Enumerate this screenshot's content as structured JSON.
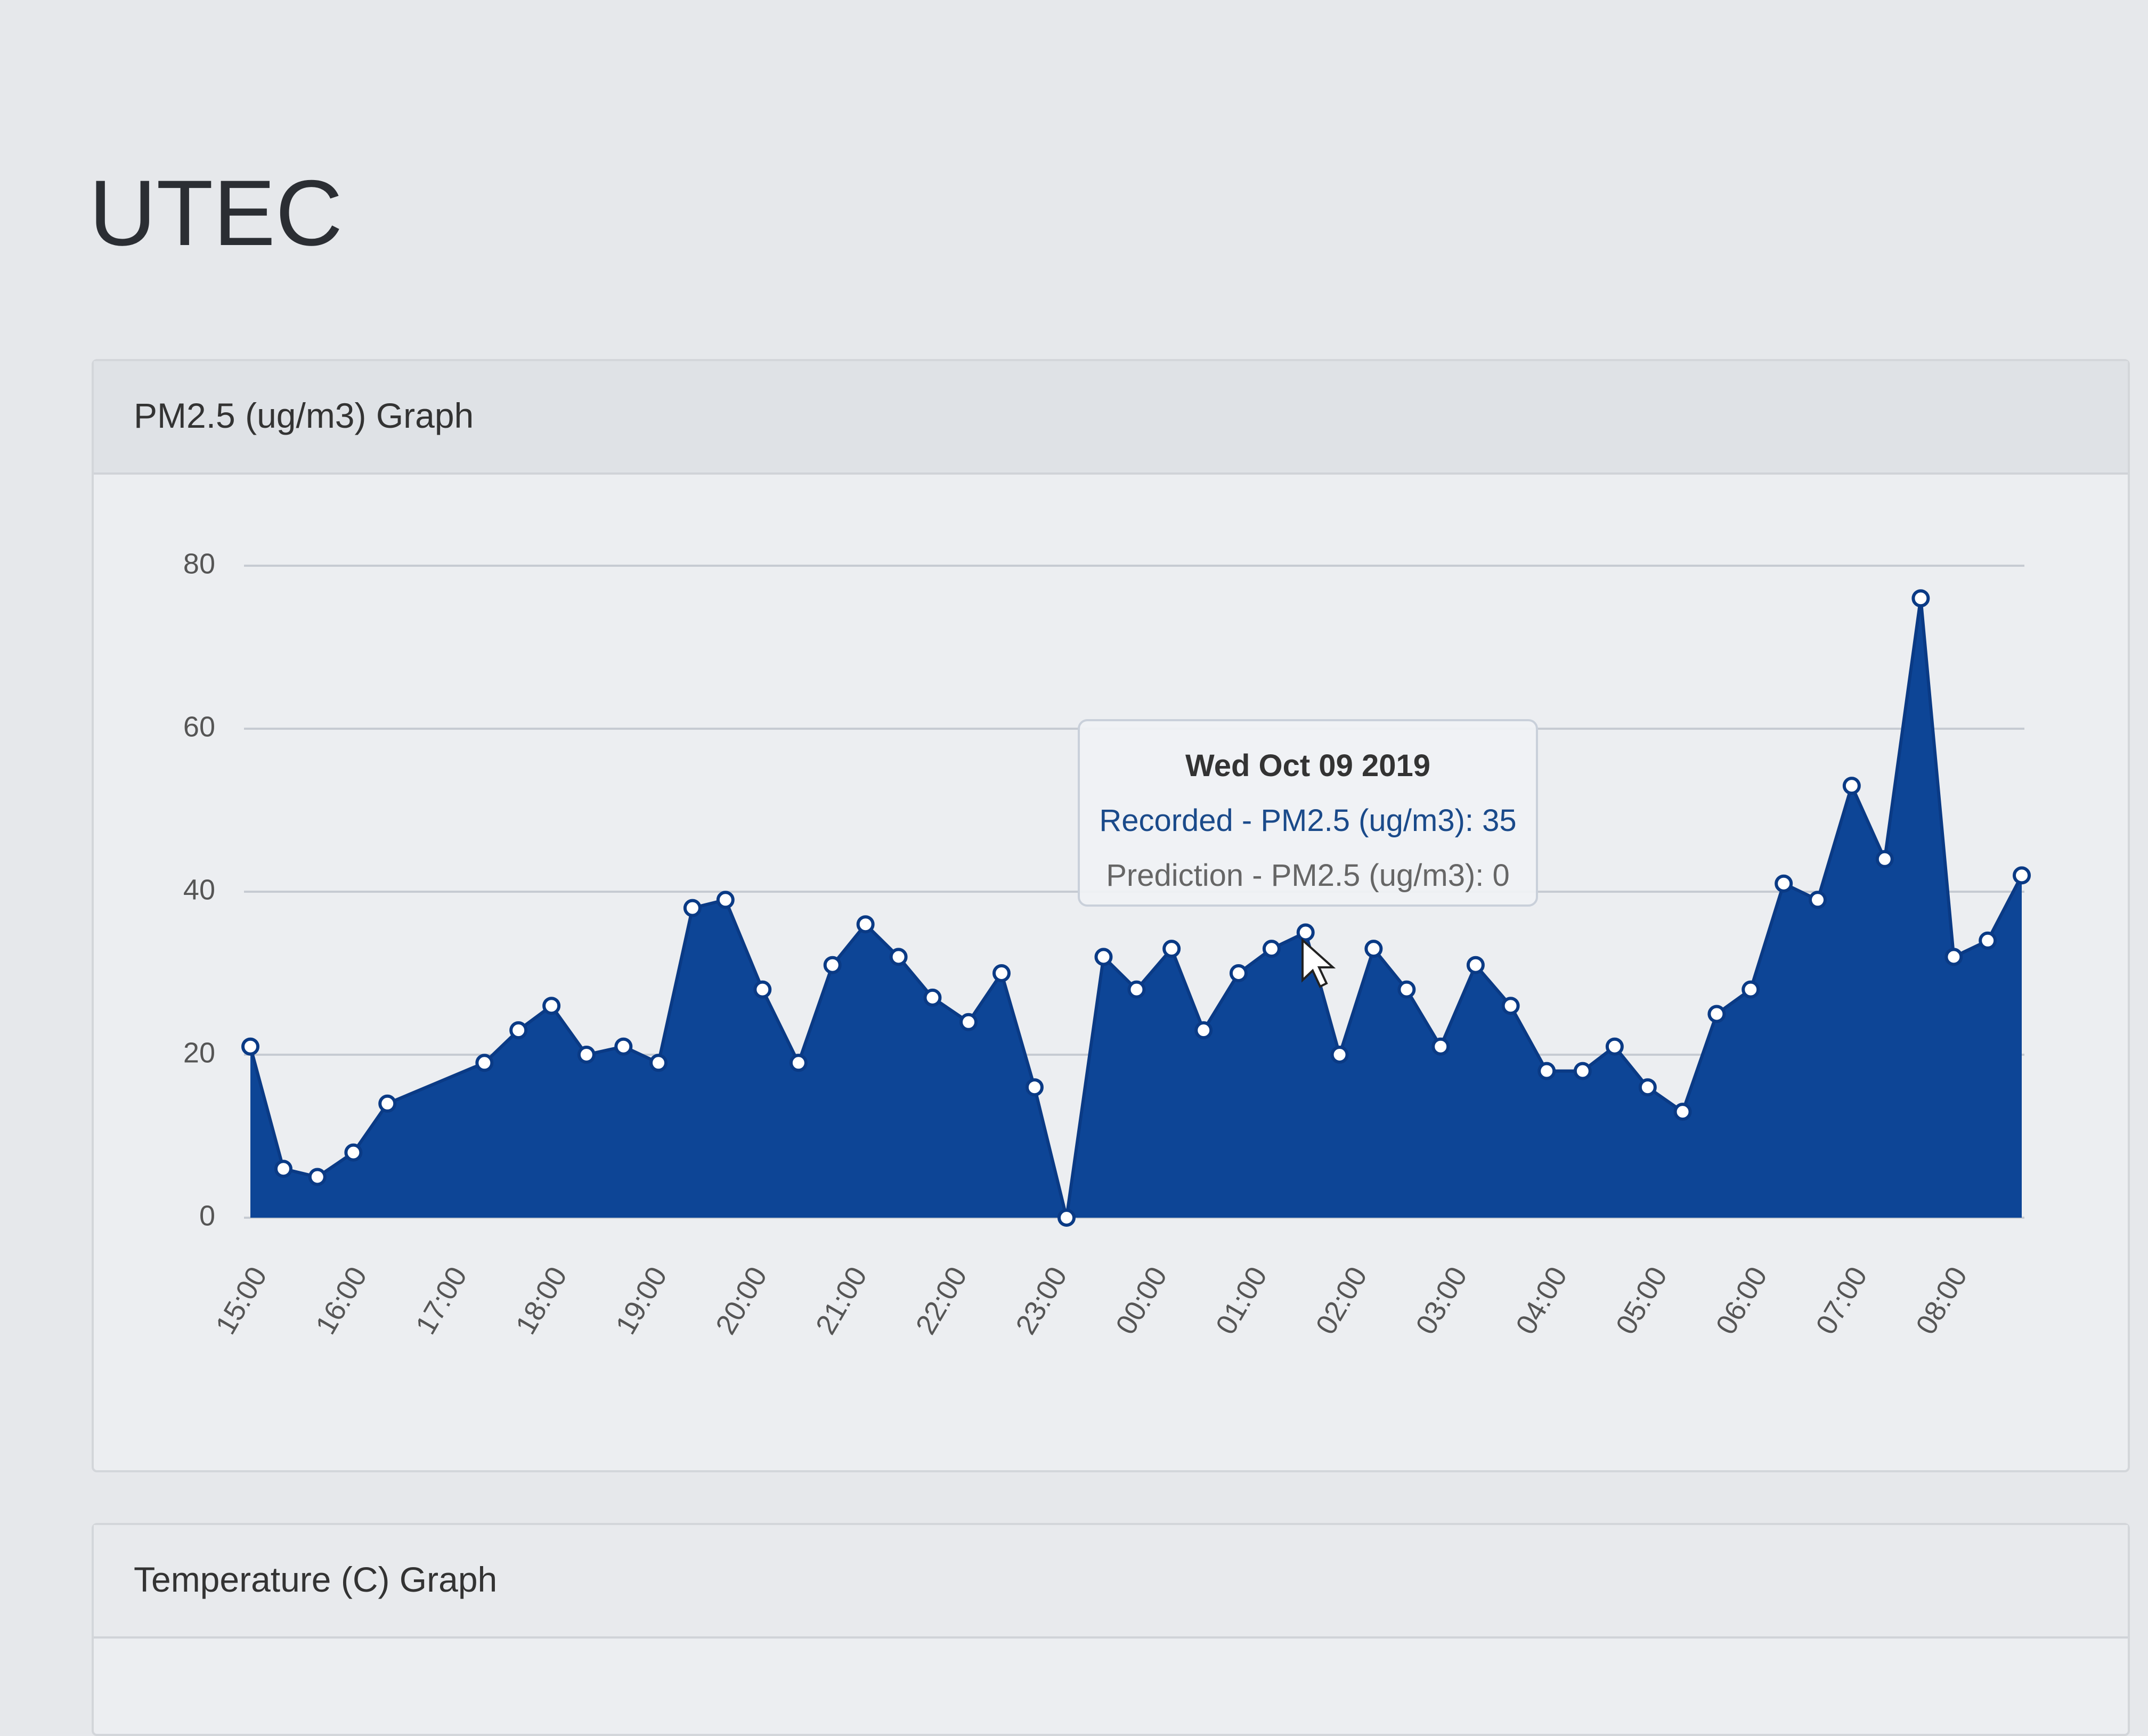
{
  "page_title": "UTEC",
  "chart_data": {
    "type": "area",
    "title": "PM2.5 (ug/m3) Graph",
    "color": "#0d4596",
    "line_color": "#0a3a85",
    "marker_fill": "#ffffff",
    "grid": true,
    "x": [
      15.0,
      15.33,
      15.67,
      16.03,
      16.37,
      17.34,
      17.68,
      18.01,
      18.36,
      18.73,
      19.08,
      19.42,
      19.75,
      20.12,
      20.48,
      20.82,
      21.15,
      21.48,
      21.82,
      22.18,
      22.51,
      22.84,
      23.16,
      23.53,
      23.86,
      24.21,
      24.53,
      24.88,
      25.21,
      25.55,
      25.89,
      26.23,
      26.56,
      26.9,
      27.25,
      27.6,
      27.96,
      28.32,
      28.64,
      28.97,
      29.32,
      29.66,
      30.0,
      30.33,
      30.67,
      31.01,
      31.34,
      31.7,
      32.03,
      32.37,
      32.71
    ],
    "values": [
      21,
      6,
      5,
      8,
      14,
      19,
      23,
      26,
      20,
      21,
      19,
      38,
      39,
      28,
      19,
      31,
      36,
      32,
      27,
      24,
      30,
      16,
      0,
      32,
      28,
      33,
      23,
      30,
      33,
      35,
      20,
      33,
      28,
      21,
      31,
      26,
      18,
      18,
      21,
      16,
      13,
      25,
      28,
      41,
      39,
      53,
      44,
      76,
      32,
      34,
      42
    ],
    "xlim": [
      15.0,
      32.71
    ],
    "xticks": [
      {
        "value": 15,
        "label": "15:00"
      },
      {
        "value": 16,
        "label": "16:00"
      },
      {
        "value": 17,
        "label": "17:00"
      },
      {
        "value": 18,
        "label": "18:00"
      },
      {
        "value": 19,
        "label": "19:00"
      },
      {
        "value": 20,
        "label": "20:00"
      },
      {
        "value": 21,
        "label": "21:00"
      },
      {
        "value": 22,
        "label": "22:00"
      },
      {
        "value": 23,
        "label": "23:00"
      },
      {
        "value": 24,
        "label": "00:00"
      },
      {
        "value": 25,
        "label": "01:00"
      },
      {
        "value": 26,
        "label": "02:00"
      },
      {
        "value": 27,
        "label": "03:00"
      },
      {
        "value": 28,
        "label": "04:00"
      },
      {
        "value": 29,
        "label": "05:00"
      },
      {
        "value": 30,
        "label": "06:00"
      },
      {
        "value": 31,
        "label": "07:00"
      },
      {
        "value": 32,
        "label": "08:00"
      }
    ],
    "ylim": [
      0,
      80
    ],
    "yticks": [
      0,
      20,
      40,
      60,
      80
    ]
  },
  "tooltip": {
    "title": "Wed Oct 09 2019",
    "lines": [
      "Recorded - PM2.5 (ug/m3): 35",
      "Prediction - PM2.5 (ug/m3): 0"
    ]
  },
  "next_panel_title": "Temperature (C) Graph"
}
